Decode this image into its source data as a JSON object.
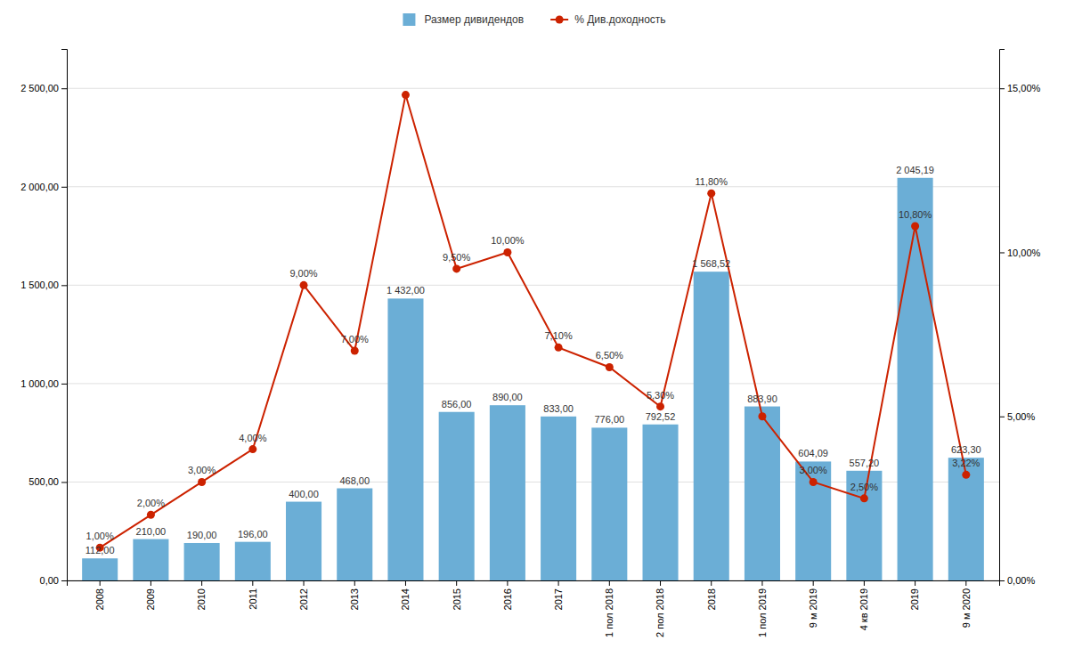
{
  "chart_data": {
    "type": "bar",
    "categories": [
      "2008",
      "2009",
      "2010",
      "2011",
      "2012",
      "2013",
      "2014",
      "2015",
      "2016",
      "2017",
      "1 пол 2018",
      "2 пол 2018",
      "2018",
      "1 пол 2019",
      "9 м 2019",
      "4 кв 2019",
      "2019",
      "9 м 2020"
    ],
    "series": [
      {
        "name": "Размер дивидендов",
        "type": "bar",
        "color": "#6baed6",
        "values": [
          112.0,
          210.0,
          190.0,
          196.0,
          400.0,
          468.0,
          1432.0,
          856.0,
          890.0,
          833.0,
          776.0,
          792.52,
          1568.52,
          883.9,
          604.09,
          557.2,
          2045.19,
          623.3
        ],
        "value_labels": [
          "112,00",
          "210,00",
          "190,00",
          "196,00",
          "400,00",
          "468,00",
          "1 432,00",
          "856,00",
          "890,00",
          "833,00",
          "776,00",
          "792,52",
          "1 568,52",
          "883,90",
          "604,09",
          "557,20",
          "2 045,19",
          "623,30"
        ]
      },
      {
        "name": "% Див.доходность",
        "type": "line",
        "color": "#cc2200",
        "marker": "circle",
        "axis": "y2",
        "values": [
          1.0,
          2.0,
          3.0,
          4.0,
          9.0,
          7.0,
          14.8,
          9.5,
          10.0,
          7.1,
          6.5,
          5.3,
          11.8,
          5.0,
          3.0,
          2.5,
          10.8,
          3.22
        ],
        "value_labels": [
          "1,00%",
          "2,00%",
          "3,00%",
          "4,00%",
          "9,00%",
          "7,00%",
          null,
          "9,50%",
          "10,00%",
          "7,10%",
          "6,50%",
          "5,30%",
          "11,80%",
          null,
          "3,00%",
          "2,50%",
          "10,80%",
          "3,22%"
        ]
      }
    ],
    "ylim": [
      0,
      2700
    ],
    "yticks": [
      {
        "value": 0,
        "label": "0,00"
      },
      {
        "value": 500,
        "label": "500,00"
      },
      {
        "value": 1000,
        "label": "1 000,00"
      },
      {
        "value": 1500,
        "label": "1 500,00"
      },
      {
        "value": 2000,
        "label": "2 000,00"
      },
      {
        "value": 2500,
        "label": "2 500,00"
      }
    ],
    "y2lim": [
      0,
      16.2
    ],
    "y2ticks": [
      {
        "value": 0,
        "label": "0,00%"
      },
      {
        "value": 5,
        "label": "5,00%"
      },
      {
        "value": 10,
        "label": "10,00%"
      },
      {
        "value": 15,
        "label": "15,00%"
      }
    ],
    "grid": true,
    "legend": "top",
    "data_labels": true
  }
}
